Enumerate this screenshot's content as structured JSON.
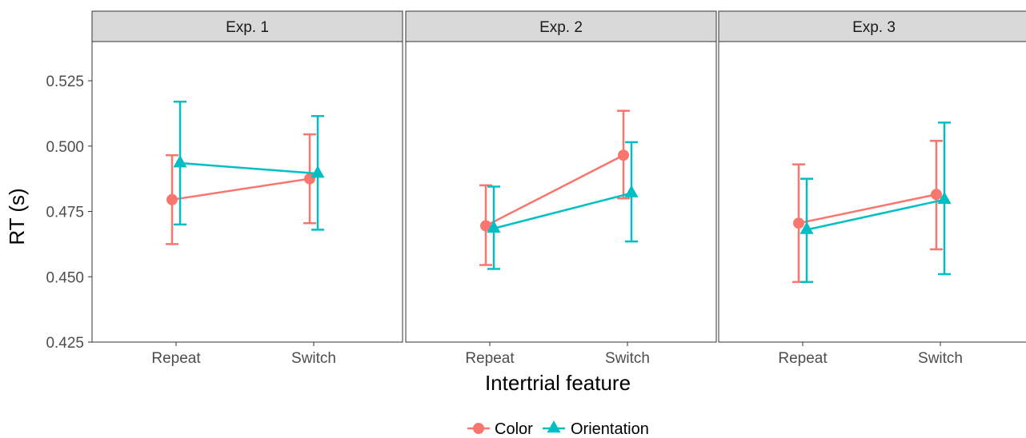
{
  "chart_data": {
    "type": "line",
    "xlabel": "Intertrial feature",
    "ylabel": "RT (s)",
    "ylim": [
      0.425,
      0.54
    ],
    "yticks": [
      0.425,
      0.45,
      0.475,
      0.5,
      0.525
    ],
    "ytick_labels": [
      "0.425",
      "0.450",
      "0.475",
      "0.500",
      "0.525"
    ],
    "categories": [
      "Repeat",
      "Switch"
    ],
    "legend_position": "bottom",
    "grid": false,
    "series_styles": [
      {
        "name": "Color",
        "color": "#F8766D",
        "marker": "circle"
      },
      {
        "name": "Orientation",
        "color": "#00BFC4",
        "marker": "triangle"
      }
    ],
    "panels": [
      {
        "title": "Exp. 1",
        "series": [
          {
            "name": "Color",
            "values": [
              0.4795,
              0.4875
            ],
            "lower": [
              0.4625,
              0.4705
            ],
            "upper": [
              0.4965,
              0.5045
            ]
          },
          {
            "name": "Orientation",
            "values": [
              0.4935,
              0.4895
            ],
            "lower": [
              0.47,
              0.468
            ],
            "upper": [
              0.517,
              0.5115
            ]
          }
        ]
      },
      {
        "title": "Exp. 2",
        "series": [
          {
            "name": "Color",
            "values": [
              0.4695,
              0.4965
            ],
            "lower": [
              0.4545,
              0.48
            ],
            "upper": [
              0.485,
              0.5135
            ]
          },
          {
            "name": "Orientation",
            "values": [
              0.4685,
              0.482
            ],
            "lower": [
              0.453,
              0.4635
            ],
            "upper": [
              0.4845,
              0.5015
            ]
          }
        ]
      },
      {
        "title": "Exp. 3",
        "series": [
          {
            "name": "Color",
            "values": [
              0.4705,
              0.4815
            ],
            "lower": [
              0.448,
              0.4605
            ],
            "upper": [
              0.493,
              0.502
            ]
          },
          {
            "name": "Orientation",
            "values": [
              0.468,
              0.4795
            ],
            "lower": [
              0.448,
              0.451
            ],
            "upper": [
              0.4875,
              0.509
            ]
          }
        ]
      }
    ]
  }
}
